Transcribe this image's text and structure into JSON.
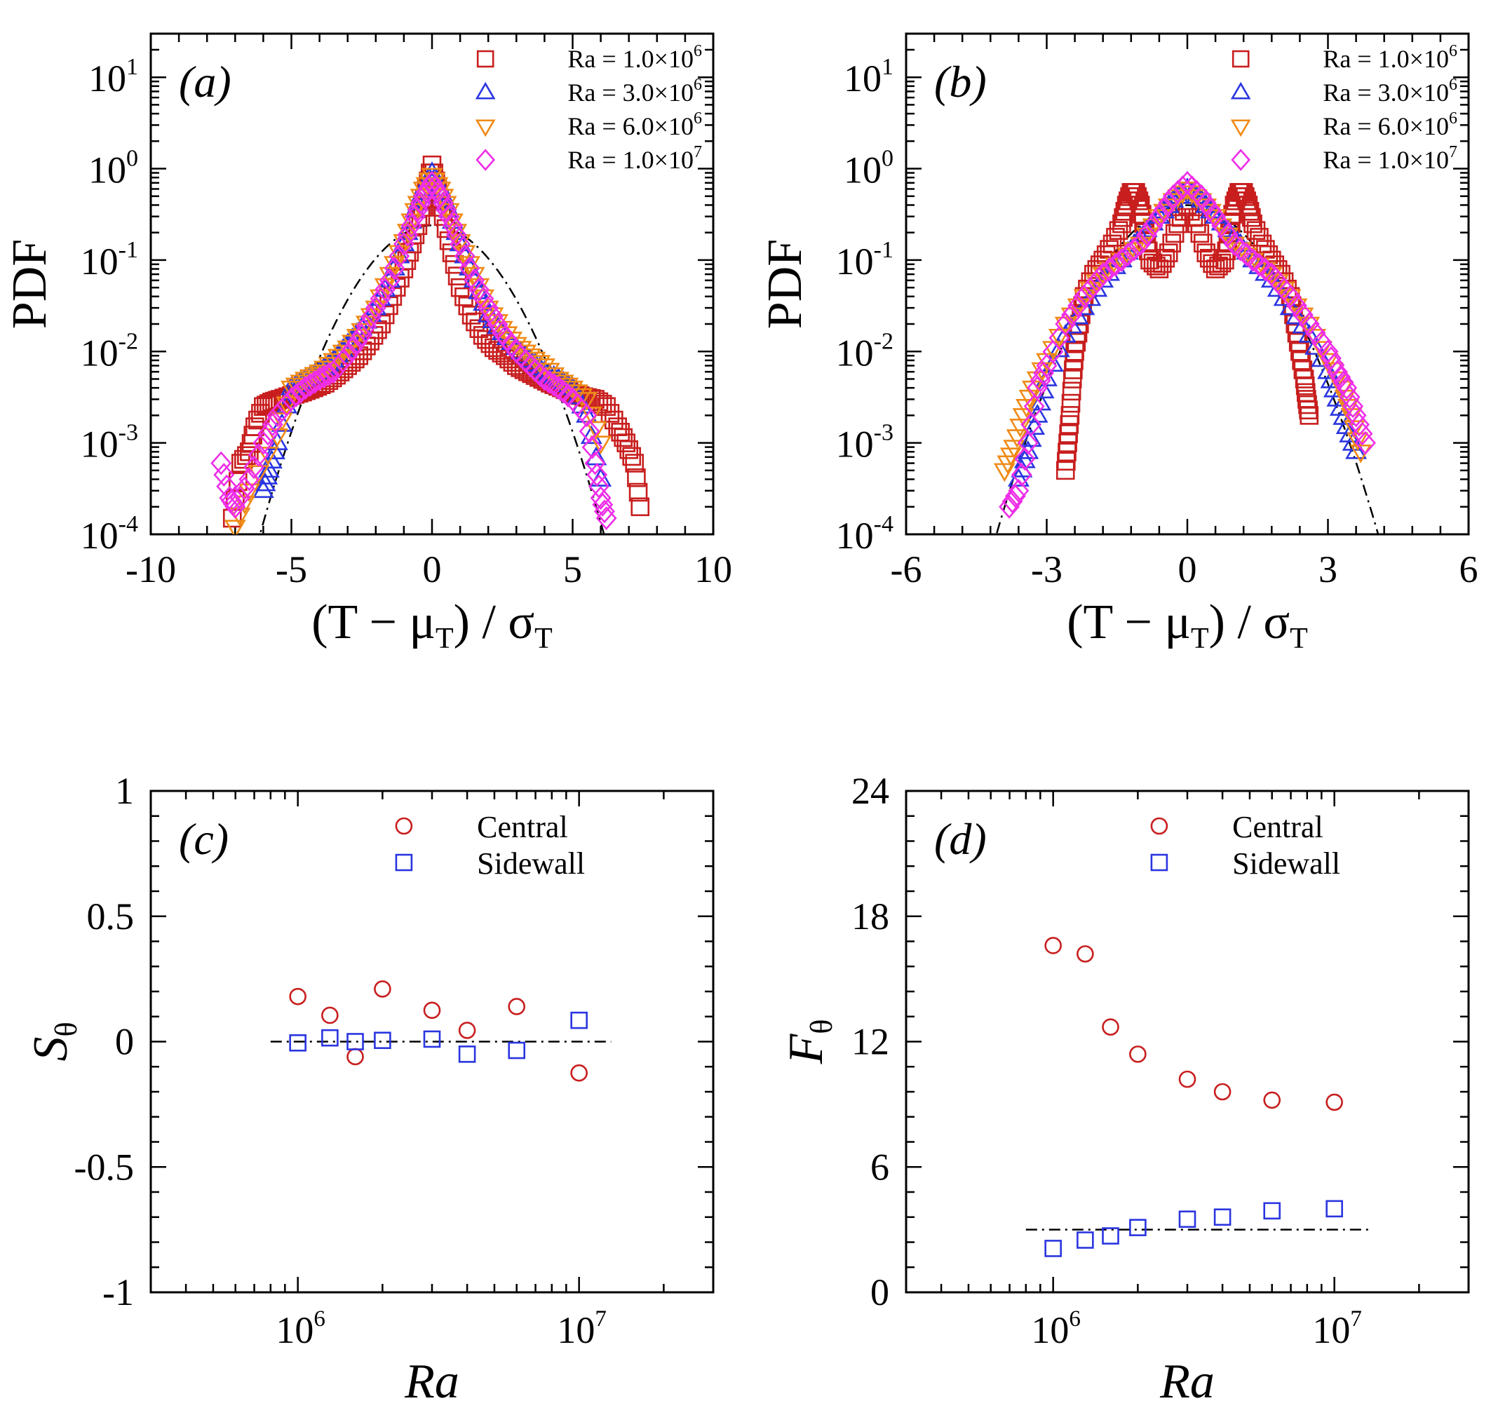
{
  "colors": {
    "red": "#c81e1e",
    "blue": "#2a35e0",
    "orange": "#f08a16",
    "magenta": "#ee2ee8",
    "black": "#000000"
  },
  "chart_data": [
    {
      "id": "a",
      "type": "scatter",
      "panel_label": "(a)",
      "xlabel": "(T − μT) / σT",
      "ylabel": "PDF",
      "yscale": "log",
      "xlim": [
        -10,
        10
      ],
      "ylim": [
        0.0001,
        30
      ],
      "x_ticks": [
        -10,
        -5,
        0,
        5,
        10
      ],
      "x_tick_labels": [
        "-10",
        "-5",
        "0",
        "5",
        "10"
      ],
      "y_ticks": [
        0.0001,
        0.001,
        0.01,
        0.1,
        1,
        10
      ],
      "y_tick_labels": [
        {
          "base": "10",
          "exp": "-4"
        },
        {
          "base": "10",
          "exp": "-3"
        },
        {
          "base": "10",
          "exp": "-2"
        },
        {
          "base": "10",
          "exp": "-1"
        },
        {
          "base": "10",
          "exp": "0"
        },
        {
          "base": "10",
          "exp": "1"
        }
      ],
      "legend": [
        {
          "marker": "square",
          "color": "#c81e1e",
          "label": "Ra = 1.0×10",
          "exp": "6"
        },
        {
          "marker": "triangle-up",
          "color": "#2a35e0",
          "label": "Ra = 3.0×10",
          "exp": "6"
        },
        {
          "marker": "triangle-down",
          "color": "#f08a16",
          "label": "Ra = 6.0×10",
          "exp": "6"
        },
        {
          "marker": "diamond",
          "color": "#ee2ee8",
          "label": "Ra = 1.0×10",
          "exp": "7"
        }
      ],
      "reference_curve": {
        "style": "dash-dot",
        "type": "gaussian",
        "peak": 0.24,
        "sigma": 1.55,
        "x_range": [
          -7.5,
          7.5
        ]
      },
      "series": [
        {
          "name": "Ra = 1.0×10^6",
          "marker": "square",
          "color": "#c81e1e",
          "x": [
            -7.1,
            -6.8,
            -6.5,
            -6.3,
            -6.0,
            -5.7,
            -5.4,
            -5.0,
            -4.6,
            -4.2,
            -3.8,
            -3.4,
            -3.0,
            -2.6,
            -2.2,
            -1.8,
            -1.4,
            -1.0,
            -0.7,
            -0.4,
            -0.2,
            0.0,
            0.2,
            0.4,
            0.7,
            1.0,
            1.4,
            1.8,
            2.2,
            2.6,
            3.0,
            3.4,
            3.8,
            4.2,
            4.6,
            5.0,
            5.4,
            5.8,
            6.2,
            6.6,
            6.9,
            7.2,
            7.4
          ],
          "y": [
            0.00015,
            0.0006,
            0.0008,
            0.0015,
            0.0025,
            0.0028,
            0.003,
            0.0033,
            0.0036,
            0.004,
            0.0045,
            0.0055,
            0.007,
            0.009,
            0.013,
            0.02,
            0.04,
            0.08,
            0.15,
            0.3,
            0.6,
            1.1,
            0.6,
            0.3,
            0.12,
            0.05,
            0.025,
            0.015,
            0.011,
            0.009,
            0.007,
            0.006,
            0.0052,
            0.0045,
            0.004,
            0.0035,
            0.0032,
            0.003,
            0.0025,
            0.0015,
            0.001,
            0.0006,
            0.0002
          ]
        },
        {
          "name": "Ra = 3.0×10^6",
          "marker": "triangle-up",
          "color": "#2a35e0",
          "x": [
            -6.0,
            -5.8,
            -5.5,
            -5.0,
            -4.5,
            -4.0,
            -3.5,
            -3.0,
            -2.5,
            -2.0,
            -1.5,
            -1.0,
            -0.6,
            -0.3,
            0.0,
            0.3,
            0.6,
            1.0,
            1.5,
            2.0,
            2.5,
            3.0,
            3.5,
            4.0,
            4.5,
            5.0,
            5.5,
            6.0
          ],
          "y": [
            0.0003,
            0.0005,
            0.001,
            0.004,
            0.005,
            0.006,
            0.008,
            0.012,
            0.018,
            0.03,
            0.06,
            0.15,
            0.35,
            0.6,
            0.9,
            0.6,
            0.35,
            0.15,
            0.06,
            0.025,
            0.016,
            0.011,
            0.008,
            0.006,
            0.005,
            0.004,
            0.002,
            0.0004
          ]
        },
        {
          "name": "Ra = 6.0×10^6",
          "marker": "triangle-down",
          "color": "#f08a16",
          "x": [
            -7.0,
            -6.5,
            -5.5,
            -5.0,
            -4.5,
            -4.0,
            -3.5,
            -3.0,
            -2.5,
            -2.0,
            -1.5,
            -1.0,
            -0.6,
            -0.3,
            0.0,
            0.3,
            0.6,
            1.0,
            1.5,
            2.0,
            2.5,
            3.0,
            3.5,
            4.0,
            4.5,
            5.0,
            5.5,
            6.0
          ],
          "y": [
            0.00012,
            0.0003,
            0.0012,
            0.004,
            0.005,
            0.006,
            0.008,
            0.011,
            0.017,
            0.03,
            0.07,
            0.16,
            0.35,
            0.6,
            0.85,
            0.6,
            0.35,
            0.16,
            0.07,
            0.03,
            0.018,
            0.012,
            0.009,
            0.007,
            0.005,
            0.004,
            0.003,
            0.001
          ]
        },
        {
          "name": "Ra = 1.0×10^7",
          "marker": "diamond",
          "color": "#ee2ee8",
          "x": [
            -7.5,
            -7.2,
            -7.0,
            -6.5,
            -6.0,
            -5.5,
            -5.0,
            -4.5,
            -4.0,
            -3.5,
            -3.0,
            -2.5,
            -2.0,
            -1.5,
            -1.0,
            -0.6,
            -0.3,
            0.0,
            0.3,
            0.6,
            1.0,
            1.5,
            2.0,
            2.5,
            3.0,
            3.5,
            4.0,
            4.5,
            5.0,
            5.5,
            5.8,
            6.0,
            6.2
          ],
          "y": [
            0.0006,
            0.00025,
            0.0002,
            0.0004,
            0.001,
            0.002,
            0.003,
            0.004,
            0.005,
            0.006,
            0.009,
            0.015,
            0.03,
            0.06,
            0.15,
            0.3,
            0.5,
            0.7,
            0.5,
            0.3,
            0.15,
            0.06,
            0.03,
            0.016,
            0.01,
            0.007,
            0.005,
            0.004,
            0.003,
            0.002,
            0.0006,
            0.00025,
            0.00015
          ]
        }
      ]
    },
    {
      "id": "b",
      "type": "scatter",
      "panel_label": "(b)",
      "xlabel": "(T − μT) / σT",
      "ylabel": "PDF",
      "yscale": "log",
      "xlim": [
        -6,
        6
      ],
      "ylim": [
        0.0001,
        30
      ],
      "x_ticks": [
        -6,
        -3,
        0,
        3,
        6
      ],
      "x_tick_labels": [
        "-6",
        "-3",
        "0",
        "3",
        "6"
      ],
      "y_ticks": [
        0.0001,
        0.001,
        0.01,
        0.1,
        1,
        10
      ],
      "y_tick_labels": [
        {
          "base": "10",
          "exp": "-4"
        },
        {
          "base": "10",
          "exp": "-3"
        },
        {
          "base": "10",
          "exp": "-2"
        },
        {
          "base": "10",
          "exp": "-1"
        },
        {
          "base": "10",
          "exp": "0"
        },
        {
          "base": "10",
          "exp": "1"
        }
      ],
      "legend": [
        {
          "marker": "square",
          "color": "#c81e1e",
          "label": "Ra = 1.0×10",
          "exp": "6"
        },
        {
          "marker": "triangle-up",
          "color": "#2a35e0",
          "label": "Ra = 3.0×10",
          "exp": "6"
        },
        {
          "marker": "triangle-down",
          "color": "#f08a16",
          "label": "Ra = 6.0×10",
          "exp": "6"
        },
        {
          "marker": "diamond",
          "color": "#ee2ee8",
          "label": "Ra = 1.0×10",
          "exp": "7"
        }
      ],
      "reference_curve": {
        "style": "dash-dot",
        "type": "gaussian",
        "peak": 0.399,
        "sigma": 1.0,
        "x_range": [
          -4.2,
          4.2
        ]
      },
      "series": [
        {
          "name": "Ra = 1.0×10^6",
          "marker": "square",
          "color": "#c81e1e",
          "x": [
            -2.6,
            -2.55,
            -2.5,
            -2.45,
            -2.4,
            -2.3,
            -2.2,
            -2.0,
            -1.8,
            -1.6,
            -1.4,
            -1.3,
            -1.2,
            -1.1,
            -1.0,
            -0.9,
            -0.8,
            -0.6,
            -0.4,
            -0.2,
            0.0,
            0.2,
            0.4,
            0.6,
            0.8,
            0.9,
            1.0,
            1.1,
            1.2,
            1.3,
            1.4,
            1.6,
            1.8,
            2.0,
            2.2,
            2.3,
            2.4,
            2.5,
            2.55,
            2.6
          ],
          "y": [
            0.0005,
            0.001,
            0.002,
            0.005,
            0.01,
            0.02,
            0.04,
            0.07,
            0.1,
            0.15,
            0.25,
            0.4,
            0.55,
            0.55,
            0.4,
            0.2,
            0.1,
            0.08,
            0.12,
            0.25,
            0.4,
            0.25,
            0.12,
            0.08,
            0.1,
            0.2,
            0.4,
            0.55,
            0.55,
            0.4,
            0.25,
            0.15,
            0.1,
            0.07,
            0.04,
            0.02,
            0.01,
            0.005,
            0.003,
            0.002
          ]
        },
        {
          "name": "Ra = 3.0×10^6",
          "marker": "triangle-up",
          "color": "#2a35e0",
          "x": [
            -3.6,
            -3.4,
            -3.2,
            -3.0,
            -2.6,
            -2.2,
            -1.8,
            -1.4,
            -1.0,
            -0.6,
            -0.3,
            0.0,
            0.3,
            0.6,
            1.0,
            1.4,
            1.8,
            2.2,
            2.6,
            3.0,
            3.2,
            3.4,
            3.6
          ],
          "y": [
            0.0004,
            0.0008,
            0.002,
            0.005,
            0.015,
            0.03,
            0.06,
            0.1,
            0.18,
            0.3,
            0.45,
            0.6,
            0.45,
            0.3,
            0.18,
            0.1,
            0.06,
            0.03,
            0.015,
            0.006,
            0.003,
            0.0015,
            0.0008
          ]
        },
        {
          "name": "Ra = 6.0×10^6",
          "marker": "triangle-down",
          "color": "#f08a16",
          "x": [
            -3.9,
            -3.7,
            -3.5,
            -3.3,
            -3.0,
            -2.6,
            -2.2,
            -1.8,
            -1.4,
            -1.0,
            -0.6,
            -0.3,
            0.0,
            0.3,
            0.6,
            1.0,
            1.4,
            1.8,
            2.2,
            2.6,
            3.0,
            3.3,
            3.5,
            3.7
          ],
          "y": [
            0.0005,
            0.0009,
            0.002,
            0.004,
            0.008,
            0.02,
            0.04,
            0.07,
            0.1,
            0.15,
            0.3,
            0.45,
            0.6,
            0.45,
            0.3,
            0.15,
            0.1,
            0.07,
            0.04,
            0.02,
            0.008,
            0.004,
            0.002,
            0.0008
          ]
        },
        {
          "name": "Ra = 1.0×10^7",
          "marker": "diamond",
          "color": "#ee2ee8",
          "x": [
            -3.8,
            -3.6,
            -3.4,
            -3.2,
            -3.0,
            -2.6,
            -2.2,
            -1.8,
            -1.4,
            -1.0,
            -0.6,
            -0.3,
            0.0,
            0.3,
            0.6,
            1.0,
            1.4,
            1.8,
            2.2,
            2.6,
            3.0,
            3.2,
            3.4,
            3.6,
            3.8
          ],
          "y": [
            0.0002,
            0.0003,
            0.001,
            0.004,
            0.007,
            0.02,
            0.04,
            0.07,
            0.1,
            0.15,
            0.3,
            0.5,
            0.7,
            0.5,
            0.3,
            0.15,
            0.1,
            0.07,
            0.04,
            0.02,
            0.01,
            0.006,
            0.004,
            0.002,
            0.001
          ]
        }
      ]
    },
    {
      "id": "c",
      "type": "scatter",
      "panel_label": "(c)",
      "xlabel": "Ra",
      "ylabel": "S",
      "ylabel_sub": "θ",
      "xscale": "log",
      "xlim": [
        300000,
        30000000
      ],
      "ylim": [
        -1,
        1
      ],
      "x_ticks": [
        1000000,
        10000000
      ],
      "x_tick_labels": [
        {
          "base": "10",
          "exp": "6"
        },
        {
          "base": "10",
          "exp": "7"
        }
      ],
      "y_ticks": [
        -1,
        -0.5,
        0,
        0.5,
        1
      ],
      "y_tick_labels": [
        "-1",
        "-0.5",
        "0",
        "0.5",
        "1"
      ],
      "legend": [
        {
          "marker": "circle",
          "color": "#c81e1e",
          "label": "Central"
        },
        {
          "marker": "square",
          "color": "#2a35e0",
          "label": "Sidewall"
        }
      ],
      "reference_line": {
        "style": "dash-dot",
        "y": 0,
        "x_range": [
          800000,
          13000000
        ]
      },
      "series": [
        {
          "name": "Central",
          "marker": "circle",
          "color": "#c81e1e",
          "x": [
            1000000,
            1300000,
            1600000,
            2000000,
            3000000,
            4000000,
            6000000,
            10000000
          ],
          "y": [
            0.18,
            0.105,
            -0.06,
            0.21,
            0.125,
            0.045,
            0.14,
            -0.125
          ]
        },
        {
          "name": "Sidewall",
          "marker": "square",
          "color": "#2a35e0",
          "x": [
            1000000,
            1300000,
            1600000,
            2000000,
            3000000,
            4000000,
            6000000,
            10000000
          ],
          "y": [
            -0.005,
            0.015,
            0.0,
            0.005,
            0.01,
            -0.05,
            -0.035,
            0.085
          ]
        }
      ]
    },
    {
      "id": "d",
      "type": "scatter",
      "panel_label": "(d)",
      "xlabel": "Ra",
      "ylabel": "F",
      "ylabel_sub": "θ",
      "xscale": "log",
      "xlim": [
        300000,
        30000000
      ],
      "ylim": [
        0,
        24
      ],
      "x_ticks": [
        1000000,
        10000000
      ],
      "x_tick_labels": [
        {
          "base": "10",
          "exp": "6"
        },
        {
          "base": "10",
          "exp": "7"
        }
      ],
      "y_ticks": [
        0,
        6,
        12,
        18,
        24
      ],
      "y_tick_labels": [
        "0",
        "6",
        "12",
        "18",
        "24"
      ],
      "legend": [
        {
          "marker": "circle",
          "color": "#c81e1e",
          "label": "Central"
        },
        {
          "marker": "square",
          "color": "#2a35e0",
          "label": "Sidewall"
        }
      ],
      "reference_line": {
        "style": "dash-dot",
        "y": 3,
        "x_range": [
          800000,
          13500000
        ]
      },
      "series": [
        {
          "name": "Central",
          "marker": "circle",
          "color": "#c81e1e",
          "x": [
            1000000,
            1300000,
            1600000,
            2000000,
            3000000,
            4000000,
            6000000,
            10000000
          ],
          "y": [
            16.6,
            16.2,
            12.7,
            11.4,
            10.2,
            9.6,
            9.2,
            9.1
          ]
        },
        {
          "name": "Sidewall",
          "marker": "square",
          "color": "#2a35e0",
          "x": [
            1000000,
            1300000,
            1600000,
            2000000,
            3000000,
            4000000,
            6000000,
            10000000
          ],
          "y": [
            2.1,
            2.5,
            2.7,
            3.1,
            3.5,
            3.6,
            3.9,
            4.0
          ]
        }
      ]
    }
  ]
}
